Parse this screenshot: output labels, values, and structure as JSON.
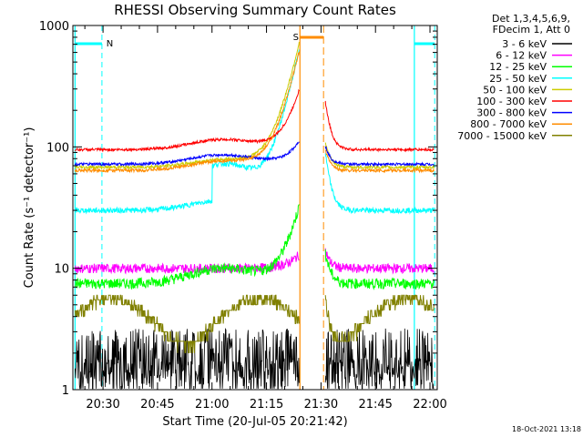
{
  "chart_data": {
    "type": "line",
    "title": "RHESSI Observing Summary Count Rates",
    "xlabel": "Start Time (20-Jul-05 20:21:42)",
    "ylabel": "Count Rate (s⁻¹ detector⁻¹)",
    "yscale": "log",
    "ylim": [
      1,
      1000
    ],
    "xlim_minutes": [
      21.7,
      122
    ],
    "x_ticks": [
      {
        "label": "20:30",
        "minute": 30
      },
      {
        "label": "20:45",
        "minute": 45
      },
      {
        "label": "21:00",
        "minute": 60
      },
      {
        "label": "21:15",
        "minute": 75
      },
      {
        "label": "21:30",
        "minute": 90
      },
      {
        "label": "21:45",
        "minute": 105
      },
      {
        "label": "22:00",
        "minute": 120
      }
    ],
    "y_ticks": [
      {
        "label": "1",
        "value": 1
      },
      {
        "label": "10",
        "value": 10
      },
      {
        "label": "100",
        "value": 100
      },
      {
        "label": "1000",
        "value": 1000
      }
    ],
    "legend_header": [
      "Det 1,3,4,5,6,9,",
      "FDecim 1, Att 0"
    ],
    "series": [
      {
        "name": "3 - 6 keV",
        "color": "#000000"
      },
      {
        "name": "6 - 12 keV",
        "color": "#ff00ff"
      },
      {
        "name": "12 - 25 keV",
        "color": "#00ff00"
      },
      {
        "name": "25 - 50 keV",
        "color": "#00ffff"
      },
      {
        "name": "50 - 100 keV",
        "color": "#cccc00"
      },
      {
        "name": "100 - 300 keV",
        "color": "#ff0000"
      },
      {
        "name": "300 - 800 keV",
        "color": "#0000ff"
      },
      {
        "name": "800 - 7000 keV",
        "color": "#ff8c00"
      },
      {
        "name": "7000 - 15000 keV",
        "color": "#808000"
      }
    ],
    "annotations": [
      {
        "label": "N",
        "color": "#00ffff"
      },
      {
        "label": "S",
        "color": "#ff8c00"
      }
    ],
    "timestamp": "18-Oct-2021 13:18"
  }
}
